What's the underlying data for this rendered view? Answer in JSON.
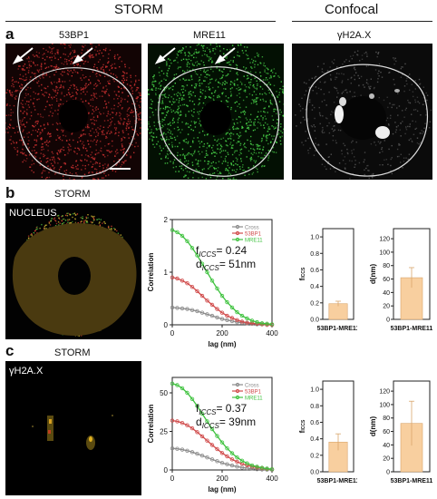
{
  "headers": {
    "storm": "STORM",
    "confocal": "Confocal"
  },
  "panel_a": {
    "letter": "a",
    "labels": [
      "53BP1",
      "MRE11",
      "γH2A.X"
    ]
  },
  "panel_b": {
    "letter": "b",
    "subtitle": "STORM",
    "image_label": "NUCLEUS",
    "f_iccs": "0.24",
    "d_iccs": "51nm"
  },
  "panel_c": {
    "letter": "c",
    "subtitle": "STORM",
    "image_label": "γH2A.X",
    "f_iccs": "0.37",
    "d_iccs": "39nm"
  },
  "colors": {
    "cross": "#8a8a8a",
    "bp1": "#d04a4a",
    "mre11": "#3ec23e",
    "bar": "#f8cf9f",
    "bar_edge": "#d9a66c"
  },
  "chart_data": [
    {
      "type": "line",
      "panel": "b",
      "xlabel": "lag (nm)",
      "ylabel": "Correlation",
      "xlim": [
        0,
        400
      ],
      "ylim": [
        0,
        2
      ],
      "xticks": [
        0,
        200,
        400
      ],
      "yticks": [
        0,
        1,
        2
      ],
      "legend_position": "top-right",
      "series": [
        {
          "name": "Cross",
          "color": "#8a8a8a",
          "x": [
            0,
            20,
            40,
            60,
            80,
            100,
            120,
            140,
            160,
            180,
            200,
            220,
            240,
            260,
            280,
            300,
            320,
            340,
            360,
            380,
            400
          ],
          "y": [
            0.33,
            0.32,
            0.31,
            0.3,
            0.28,
            0.26,
            0.23,
            0.2,
            0.17,
            0.14,
            0.11,
            0.09,
            0.07,
            0.05,
            0.04,
            0.03,
            0.02,
            0.01,
            0.01,
            0.0,
            0.0
          ]
        },
        {
          "name": "53BP1",
          "color": "#d04a4a",
          "x": [
            0,
            20,
            40,
            60,
            80,
            100,
            120,
            140,
            160,
            180,
            200,
            220,
            240,
            260,
            280,
            300,
            320,
            340,
            360,
            380,
            400
          ],
          "y": [
            0.9,
            0.88,
            0.84,
            0.79,
            0.72,
            0.64,
            0.55,
            0.46,
            0.38,
            0.3,
            0.23,
            0.17,
            0.13,
            0.09,
            0.06,
            0.04,
            0.03,
            0.02,
            0.01,
            0.0,
            0.0
          ]
        },
        {
          "name": "MRE11",
          "color": "#3ec23e",
          "x": [
            0,
            20,
            40,
            60,
            80,
            100,
            120,
            140,
            160,
            180,
            200,
            220,
            240,
            260,
            280,
            300,
            320,
            340,
            360,
            380,
            400
          ],
          "y": [
            1.8,
            1.76,
            1.69,
            1.59,
            1.46,
            1.32,
            1.16,
            1.0,
            0.84,
            0.69,
            0.55,
            0.43,
            0.33,
            0.24,
            0.17,
            0.12,
            0.08,
            0.05,
            0.03,
            0.02,
            0.01
          ]
        }
      ]
    },
    {
      "type": "bar",
      "panel": "b",
      "ylabel": "fICCS",
      "categories": [
        "53BP1-MRE11"
      ],
      "values": [
        0.19
      ],
      "errors": [
        0.03
      ],
      "ylim": [
        0,
        1.1
      ],
      "yticks": [
        0.0,
        0.2,
        0.4,
        0.6,
        0.8,
        1.0
      ]
    },
    {
      "type": "bar",
      "panel": "b",
      "ylabel": "d(nm)",
      "categories": [
        "53BP1-MRE11"
      ],
      "values": [
        62
      ],
      "errors": [
        15
      ],
      "ylim": [
        0,
        135
      ],
      "yticks": [
        0,
        20,
        40,
        60,
        80,
        100,
        120
      ]
    },
    {
      "type": "line",
      "panel": "c",
      "xlabel": "lag (nm)",
      "ylabel": "Correlation",
      "xlim": [
        0,
        400
      ],
      "ylim": [
        0,
        60
      ],
      "xticks": [
        0,
        200,
        400
      ],
      "yticks": [
        0,
        25,
        50
      ],
      "legend_position": "top-right",
      "series": [
        {
          "name": "Cross",
          "color": "#8a8a8a",
          "x": [
            0,
            20,
            40,
            60,
            80,
            100,
            120,
            140,
            160,
            180,
            200,
            220,
            240,
            260,
            280,
            300,
            320,
            340,
            360,
            380,
            400
          ],
          "y": [
            14,
            13.7,
            13.2,
            12.5,
            11.6,
            10.5,
            9.3,
            8.1,
            6.9,
            5.7,
            4.6,
            3.7,
            2.9,
            2.2,
            1.6,
            1.2,
            0.8,
            0.5,
            0.3,
            0.2,
            0.1
          ]
        },
        {
          "name": "53BP1",
          "color": "#d04a4a",
          "x": [
            0,
            20,
            40,
            60,
            80,
            100,
            120,
            140,
            160,
            180,
            200,
            220,
            240,
            260,
            280,
            300,
            320,
            340,
            360,
            380,
            400
          ],
          "y": [
            32,
            31.5,
            30.5,
            29,
            27,
            24.5,
            21.8,
            19,
            16.2,
            13.5,
            11,
            8.8,
            6.9,
            5.3,
            4,
            3,
            2.2,
            1.6,
            1.1,
            0.7,
            0.4
          ]
        },
        {
          "name": "MRE11",
          "color": "#3ec23e",
          "x": [
            0,
            20,
            40,
            60,
            80,
            100,
            120,
            140,
            160,
            180,
            200,
            220,
            240,
            260,
            280,
            300,
            320,
            340,
            360,
            380,
            400
          ],
          "y": [
            56,
            55,
            53,
            50,
            46,
            41.5,
            36.5,
            31.5,
            26.5,
            22,
            17.8,
            14,
            10.8,
            8.1,
            6,
            4.3,
            3,
            2.1,
            1.4,
            0.9,
            0.5
          ]
        }
      ]
    },
    {
      "type": "bar",
      "panel": "c",
      "ylabel": "fICCS",
      "categories": [
        "53BP1-MRE11"
      ],
      "values": [
        0.36
      ],
      "errors": [
        0.1
      ],
      "ylim": [
        0,
        1.1
      ],
      "yticks": [
        0.0,
        0.2,
        0.4,
        0.6,
        0.8,
        1.0
      ]
    },
    {
      "type": "bar",
      "panel": "c",
      "ylabel": "d(nm)",
      "categories": [
        "53BP1-MRE11"
      ],
      "values": [
        72
      ],
      "errors": [
        33
      ],
      "ylim": [
        0,
        135
      ],
      "yticks": [
        0,
        20,
        40,
        60,
        80,
        100,
        120
      ]
    }
  ]
}
